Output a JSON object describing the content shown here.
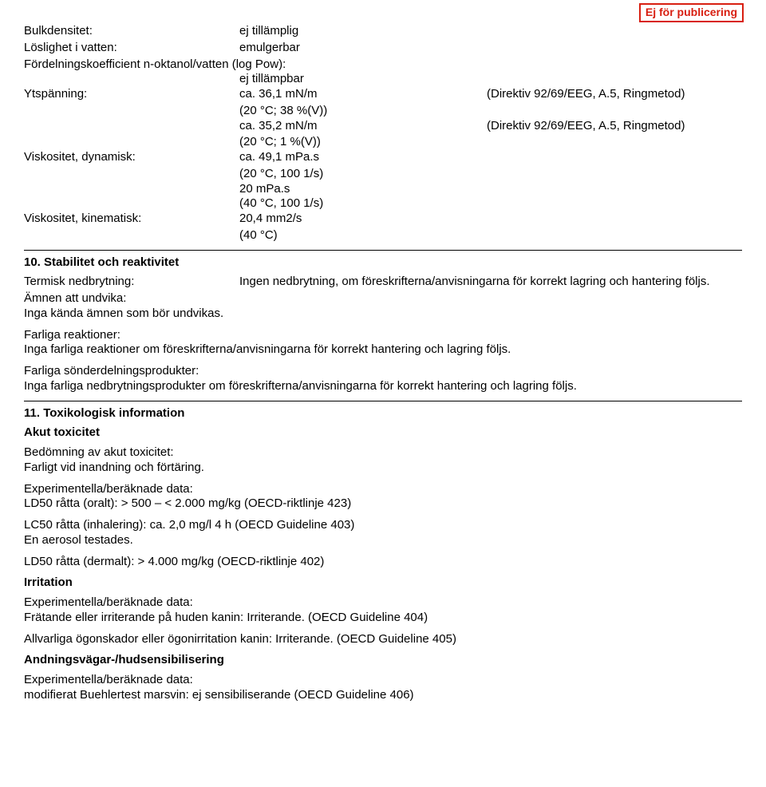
{
  "stamp": "Ej för publicering",
  "s9": {
    "bulk": {
      "label": "Bulkdensitet:",
      "value": "ej tillämplig"
    },
    "solubility": {
      "label": "Löslighet i vatten:",
      "value": "emulgerbar"
    },
    "partition": {
      "label": "Fördelningskoefficient n-oktanol/vatten (log Pow):",
      "value": "ej tillämpbar"
    },
    "surface": {
      "label": "Ytspänning:",
      "v1": "ca. 36,1 mN/m",
      "c1": "(20 °C; 38 %(V))",
      "n1": "(Direktiv 92/69/EEG, A.5, Ringmetod)",
      "v2": "ca. 35,2 mN/m",
      "c2": "(20 °C; 1 %(V))",
      "n2": "(Direktiv 92/69/EEG, A.5, Ringmetod)"
    },
    "visc_dyn": {
      "label": "Viskositet, dynamisk:",
      "v1": "ca. 49,1 mPa.s",
      "c1": "(20 °C, 100 1/s)",
      "v2": "20 mPa.s",
      "c2": "(40 °C, 100 1/s)"
    },
    "visc_kin": {
      "label": "Viskositet, kinematisk:",
      "v1": "20,4 mm2/s",
      "c1": "(40 °C)"
    }
  },
  "s10": {
    "heading": "10. Stabilitet och reaktivitet",
    "thermal": {
      "label": "Termisk nedbrytning:",
      "value": "Ingen nedbrytning, om föreskrifterna/anvisningarna för korrekt lagring och hantering följs."
    },
    "avoid": {
      "label": "Ämnen att undvika:",
      "text": "Inga kända ämnen som bör undvikas."
    },
    "reactions": {
      "label": "Farliga reaktioner:",
      "text": "Inga farliga reaktioner om föreskrifterna/anvisningarna för korrekt hantering och lagring följs."
    },
    "decomp": {
      "label": "Farliga sönderdelningsprodukter:",
      "text": "Inga farliga nedbrytningsprodukter om föreskrifterna/anvisningarna för korrekt hantering och lagring följs."
    }
  },
  "s11": {
    "heading": "11. Toxikologisk information",
    "acute_h": "Akut toxicitet",
    "acute_assess_l": "Bedömning av akut toxicitet:",
    "acute_assess_t": "Farligt vid inandning och förtäring.",
    "exp_l": "Experimentella/beräknade data:",
    "ld50_oral": "LD50 råtta (oralt): > 500 – < 2.000 mg/kg (OECD-riktlinje 423)",
    "lc50_inh": "LC50 råtta (inhalering): ca. 2,0 mg/l 4 h (OECD Guideline 403)",
    "aerosol": "En aerosol testades.",
    "ld50_derm": "LD50 råtta (dermalt): > 4.000 mg/kg (OECD-riktlinje 402)",
    "irrit_h": "Irritation",
    "irrit_skin": "Frätande eller irriterande på huden kanin: Irriterande. (OECD Guideline 404)",
    "irrit_eye": "Allvarliga ögonskador eller ögonirritation kanin: Irriterande. (OECD Guideline 405)",
    "sens_h": "Andningsvägar-/hudsensibilisering",
    "sens_t": "modifierat Buehlertest marsvin: ej sensibiliserande (OECD Guideline 406)"
  }
}
